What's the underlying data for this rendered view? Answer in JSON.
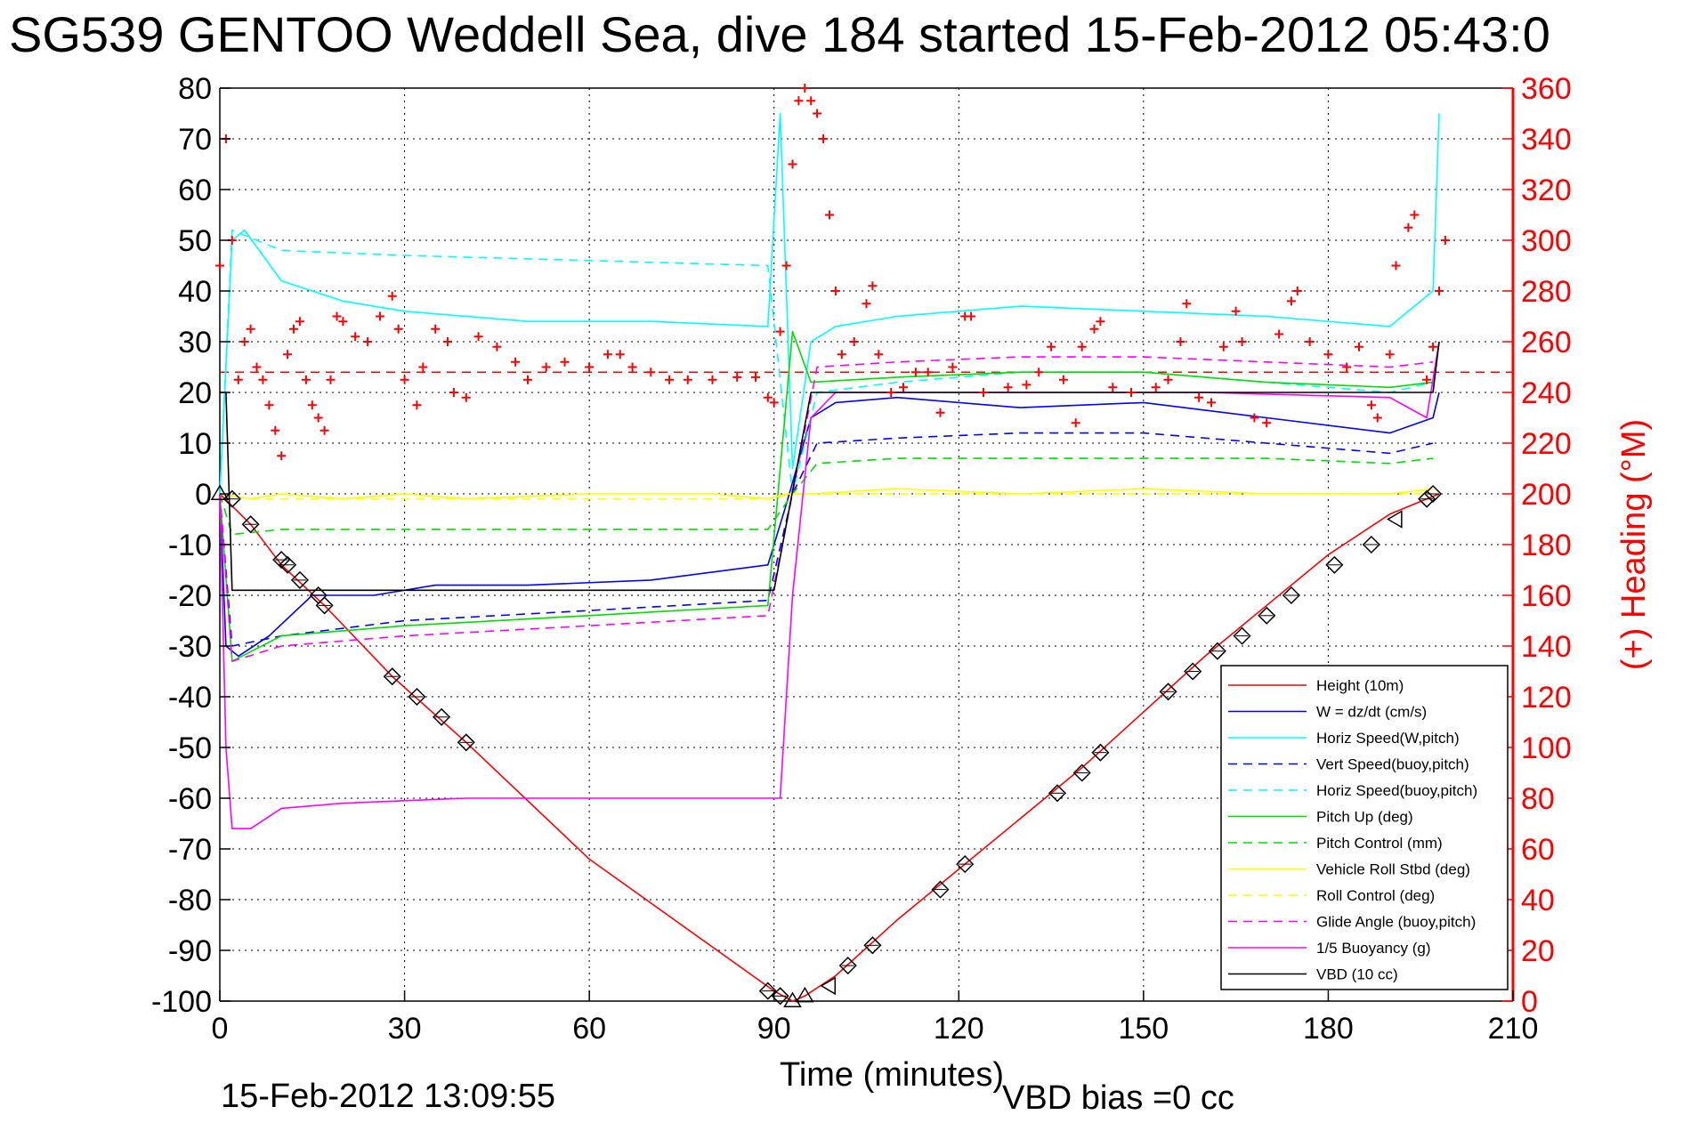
{
  "title": "SG539 GENTOO Weddell Sea, dive 184 started 15-Feb-2012 05:43:0",
  "footer": {
    "timestamp": "15-Feb-2012 13:09:55",
    "vbd_bias": "VBD bias =0 cc"
  },
  "chart_data": {
    "type": "line",
    "xlabel": "Time (minutes)",
    "ylabel": "",
    "y2label": "(+) Heading (°M)",
    "xlim": [
      0,
      210
    ],
    "ylim": [
      -100,
      80
    ],
    "y2lim": [
      0,
      360
    ],
    "x_ticks": [
      "0",
      "30",
      "60",
      "90",
      "120",
      "150",
      "180",
      "210"
    ],
    "y_ticks": [
      "80",
      "70",
      "60",
      "50",
      "40",
      "30",
      "20",
      "10",
      "0",
      "-10",
      "-20",
      "-30",
      "-40",
      "-50",
      "-60",
      "-70",
      "-80",
      "-90",
      "-100"
    ],
    "y2_ticks": [
      "360",
      "340",
      "320",
      "300",
      "280",
      "260",
      "240",
      "220",
      "200",
      "180",
      "160",
      "140",
      "120",
      "100",
      "80",
      "60",
      "40",
      "20",
      "0"
    ],
    "grid": true,
    "legend_position": "bottom-right",
    "series": [
      {
        "name": "Height (10m)",
        "color": "#ff0000",
        "style": "solid",
        "x": [
          0,
          5,
          10,
          17,
          28,
          40,
          60,
          90,
          93,
          95,
          100,
          110,
          120,
          140,
          160,
          180,
          190,
          198
        ],
        "y": [
          0,
          -6,
          -14,
          -22,
          -36,
          -49,
          -72,
          -98,
          -100,
          -99,
          -95,
          -84,
          -74,
          -54,
          -32,
          -12,
          -4,
          0
        ]
      },
      {
        "name": "W = dz/dt (cm/s)",
        "color": "#0000ff",
        "style": "solid",
        "x": [
          0,
          1,
          3,
          8,
          15,
          25,
          35,
          50,
          70,
          89,
          92,
          96,
          100,
          110,
          130,
          150,
          170,
          190,
          197,
          198
        ],
        "y": [
          0,
          -30,
          -32,
          -28,
          -20,
          -20,
          -18,
          -18,
          -17,
          -14,
          -2,
          15,
          18,
          19,
          17,
          18,
          15,
          12,
          15,
          20
        ]
      },
      {
        "name": "Horiz Speed(W,pitch)",
        "color": "#00ffff",
        "style": "solid",
        "x": [
          0,
          2,
          4,
          10,
          20,
          30,
          50,
          70,
          89,
          91,
          93,
          96,
          100,
          110,
          130,
          150,
          170,
          190,
          197,
          198
        ],
        "y": [
          0,
          50,
          52,
          42,
          38,
          36,
          34,
          34,
          33,
          75,
          5,
          30,
          33,
          35,
          37,
          36,
          35,
          33,
          40,
          75
        ]
      },
      {
        "name": "Vert Speed(buoy,pitch)",
        "color": "#0000ff",
        "style": "dashed",
        "x": [
          0,
          2,
          10,
          30,
          60,
          89,
          93,
          97,
          110,
          130,
          150,
          170,
          190,
          197
        ],
        "y": [
          0,
          -30,
          -28,
          -25,
          -23,
          -21,
          0,
          10,
          11,
          12,
          12,
          10,
          8,
          10
        ]
      },
      {
        "name": "Horiz Speed(buoy,pitch)",
        "color": "#00ffff",
        "style": "dashed",
        "x": [
          0,
          2,
          10,
          30,
          60,
          89,
          93,
          97,
          110,
          130,
          150,
          170,
          190,
          197
        ],
        "y": [
          0,
          52,
          48,
          47,
          46,
          45,
          0,
          20,
          22,
          24,
          24,
          22,
          20,
          22
        ]
      },
      {
        "name": "Pitch Up (deg)",
        "color": "#00dd00",
        "style": "solid",
        "x": [
          0,
          2,
          10,
          30,
          60,
          89,
          93,
          96,
          110,
          130,
          150,
          170,
          190,
          197
        ],
        "y": [
          0,
          -33,
          -28,
          -26,
          -24,
          -22,
          32,
          22,
          23,
          24,
          24,
          22,
          21,
          22
        ]
      },
      {
        "name": "Pitch Control (mm)",
        "color": "#00dd00",
        "style": "dashed",
        "x": [
          0,
          2,
          10,
          30,
          60,
          89,
          93,
          97,
          110,
          130,
          150,
          170,
          190,
          197
        ],
        "y": [
          0,
          -8,
          -7,
          -7,
          -7,
          -7,
          0,
          6,
          7,
          7,
          7,
          7,
          6,
          7
        ]
      },
      {
        "name": "Vehicle Roll Stbd (deg)",
        "color": "#ffff00",
        "style": "solid",
        "x": [
          0,
          5,
          10,
          20,
          30,
          40,
          60,
          80,
          89,
          92,
          96,
          110,
          130,
          150,
          170,
          190,
          197
        ],
        "y": [
          0,
          -1,
          0,
          -1,
          0,
          -1,
          0,
          0,
          -1,
          0,
          0,
          1,
          0,
          1,
          0,
          0,
          1
        ]
      },
      {
        "name": "Roll Control (deg)",
        "color": "#ffff00",
        "style": "dashed",
        "x": [
          0,
          5,
          10,
          30,
          60,
          89,
          93,
          97,
          110,
          130,
          150,
          170,
          190,
          197
        ],
        "y": [
          0,
          -1,
          -1,
          -1,
          -1,
          -1,
          0,
          0,
          0,
          0,
          0,
          0,
          0,
          0
        ]
      },
      {
        "name": "Glide Angle (buoy,pitch)",
        "color": "#ff00ff",
        "style": "dashed",
        "x": [
          0,
          2,
          10,
          30,
          60,
          89,
          93,
          97,
          110,
          130,
          150,
          170,
          190,
          197
        ],
        "y": [
          0,
          -33,
          -30,
          -28,
          -26,
          -24,
          0,
          25,
          26,
          27,
          27,
          26,
          25,
          26
        ]
      },
      {
        "name": "1/5 Buoyancy (g)",
        "color": "#ff00ff",
        "style": "solid",
        "x": [
          0,
          1,
          2,
          5,
          10,
          20,
          40,
          60,
          89,
          91,
          93,
          96,
          100,
          130,
          160,
          190,
          196,
          198
        ],
        "y": [
          0,
          -50,
          -66,
          -66,
          -62,
          -61,
          -60,
          -60,
          -60,
          -60,
          -20,
          15,
          20,
          20,
          20,
          19,
          15,
          30
        ]
      },
      {
        "name": "VBD (10 cc)",
        "color": "#000000",
        "style": "solid",
        "x": [
          0,
          1,
          2,
          50,
          89,
          90,
          96,
          100,
          150,
          190,
          197,
          198
        ],
        "y": [
          20,
          20,
          -19,
          -19,
          -19,
          -19,
          20,
          20,
          20,
          20,
          20,
          30
        ]
      }
    ],
    "heading_reference_deg": 248,
    "heading_reference_color": "#ff0000",
    "heading_points": [
      {
        "x": 0,
        "y": 290
      },
      {
        "x": 1,
        "y": 340
      },
      {
        "x": 2,
        "y": 300
      },
      {
        "x": 3,
        "y": 245
      },
      {
        "x": 4,
        "y": 260
      },
      {
        "x": 5,
        "y": 265
      },
      {
        "x": 6,
        "y": 250
      },
      {
        "x": 7,
        "y": 245
      },
      {
        "x": 8,
        "y": 235
      },
      {
        "x": 9,
        "y": 225
      },
      {
        "x": 10,
        "y": 215
      },
      {
        "x": 11,
        "y": 255
      },
      {
        "x": 12,
        "y": 265
      },
      {
        "x": 13,
        "y": 268
      },
      {
        "x": 14,
        "y": 245
      },
      {
        "x": 15,
        "y": 235
      },
      {
        "x": 16,
        "y": 230
      },
      {
        "x": 17,
        "y": 225
      },
      {
        "x": 18,
        "y": 245
      },
      {
        "x": 19,
        "y": 270
      },
      {
        "x": 20,
        "y": 268
      },
      {
        "x": 22,
        "y": 262
      },
      {
        "x": 24,
        "y": 260
      },
      {
        "x": 26,
        "y": 270
      },
      {
        "x": 28,
        "y": 278
      },
      {
        "x": 29,
        "y": 265
      },
      {
        "x": 30,
        "y": 245
      },
      {
        "x": 32,
        "y": 235
      },
      {
        "x": 33,
        "y": 250
      },
      {
        "x": 35,
        "y": 265
      },
      {
        "x": 37,
        "y": 260
      },
      {
        "x": 38,
        "y": 240
      },
      {
        "x": 40,
        "y": 238
      },
      {
        "x": 42,
        "y": 262
      },
      {
        "x": 45,
        "y": 258
      },
      {
        "x": 48,
        "y": 252
      },
      {
        "x": 50,
        "y": 245
      },
      {
        "x": 53,
        "y": 250
      },
      {
        "x": 56,
        "y": 252
      },
      {
        "x": 60,
        "y": 250
      },
      {
        "x": 63,
        "y": 255
      },
      {
        "x": 65,
        "y": 255
      },
      {
        "x": 67,
        "y": 250
      },
      {
        "x": 70,
        "y": 248
      },
      {
        "x": 73,
        "y": 245
      },
      {
        "x": 76,
        "y": 245
      },
      {
        "x": 80,
        "y": 245
      },
      {
        "x": 84,
        "y": 246
      },
      {
        "x": 87,
        "y": 246
      },
      {
        "x": 89,
        "y": 238
      },
      {
        "x": 90,
        "y": 236
      },
      {
        "x": 91,
        "y": 264
      },
      {
        "x": 92,
        "y": 290
      },
      {
        "x": 93,
        "y": 330
      },
      {
        "x": 94,
        "y": 355
      },
      {
        "x": 95,
        "y": 360
      },
      {
        "x": 96,
        "y": 355
      },
      {
        "x": 97,
        "y": 350
      },
      {
        "x": 98,
        "y": 340
      },
      {
        "x": 99,
        "y": 310
      },
      {
        "x": 100,
        "y": 280
      },
      {
        "x": 101,
        "y": 255
      },
      {
        "x": 103,
        "y": 260
      },
      {
        "x": 105,
        "y": 275
      },
      {
        "x": 106,
        "y": 282
      },
      {
        "x": 107,
        "y": 255
      },
      {
        "x": 109,
        "y": 240
      },
      {
        "x": 111,
        "y": 242
      },
      {
        "x": 113,
        "y": 248
      },
      {
        "x": 115,
        "y": 248
      },
      {
        "x": 117,
        "y": 232
      },
      {
        "x": 119,
        "y": 250
      },
      {
        "x": 121,
        "y": 270
      },
      {
        "x": 122,
        "y": 270
      },
      {
        "x": 124,
        "y": 240
      },
      {
        "x": 128,
        "y": 242
      },
      {
        "x": 131,
        "y": 243
      },
      {
        "x": 133,
        "y": 248
      },
      {
        "x": 135,
        "y": 258
      },
      {
        "x": 137,
        "y": 245
      },
      {
        "x": 139,
        "y": 228
      },
      {
        "x": 140,
        "y": 258
      },
      {
        "x": 142,
        "y": 265
      },
      {
        "x": 143,
        "y": 268
      },
      {
        "x": 145,
        "y": 242
      },
      {
        "x": 148,
        "y": 240
      },
      {
        "x": 152,
        "y": 242
      },
      {
        "x": 154,
        "y": 245
      },
      {
        "x": 156,
        "y": 260
      },
      {
        "x": 157,
        "y": 275
      },
      {
        "x": 159,
        "y": 238
      },
      {
        "x": 161,
        "y": 236
      },
      {
        "x": 163,
        "y": 258
      },
      {
        "x": 165,
        "y": 272
      },
      {
        "x": 166,
        "y": 260
      },
      {
        "x": 168,
        "y": 230
      },
      {
        "x": 170,
        "y": 228
      },
      {
        "x": 172,
        "y": 263
      },
      {
        "x": 174,
        "y": 276
      },
      {
        "x": 175,
        "y": 280
      },
      {
        "x": 177,
        "y": 260
      },
      {
        "x": 180,
        "y": 255
      },
      {
        "x": 183,
        "y": 250
      },
      {
        "x": 185,
        "y": 258
      },
      {
        "x": 187,
        "y": 235
      },
      {
        "x": 188,
        "y": 230
      },
      {
        "x": 190,
        "y": 255
      },
      {
        "x": 191,
        "y": 290
      },
      {
        "x": 193,
        "y": 305
      },
      {
        "x": 194,
        "y": 310
      },
      {
        "x": 196,
        "y": 245
      },
      {
        "x": 197,
        "y": 258
      },
      {
        "x": 198,
        "y": 280
      },
      {
        "x": 199,
        "y": 300
      }
    ],
    "depth_markers": [
      {
        "x": 0,
        "y": 0,
        "shape": "triangle-up"
      },
      {
        "x": 2,
        "y": -1,
        "shape": "diamond"
      },
      {
        "x": 5,
        "y": -6,
        "shape": "diamond"
      },
      {
        "x": 10,
        "y": -13,
        "shape": "diamond"
      },
      {
        "x": 11,
        "y": -14,
        "shape": "diamond"
      },
      {
        "x": 13,
        "y": -17,
        "shape": "diamond"
      },
      {
        "x": 16,
        "y": -20,
        "shape": "diamond"
      },
      {
        "x": 17,
        "y": -22,
        "shape": "diamond"
      },
      {
        "x": 28,
        "y": -36,
        "shape": "diamond"
      },
      {
        "x": 32,
        "y": -40,
        "shape": "diamond"
      },
      {
        "x": 36,
        "y": -44,
        "shape": "diamond"
      },
      {
        "x": 40,
        "y": -49,
        "shape": "diamond"
      },
      {
        "x": 89,
        "y": -98,
        "shape": "diamond"
      },
      {
        "x": 91,
        "y": -99,
        "shape": "diamond"
      },
      {
        "x": 93,
        "y": -100,
        "shape": "triangle-up"
      },
      {
        "x": 95,
        "y": -99,
        "shape": "triangle-up"
      },
      {
        "x": 99,
        "y": -97,
        "shape": "triangle-left"
      },
      {
        "x": 102,
        "y": -93,
        "shape": "diamond"
      },
      {
        "x": 106,
        "y": -89,
        "shape": "diamond"
      },
      {
        "x": 117,
        "y": -78,
        "shape": "diamond"
      },
      {
        "x": 121,
        "y": -73,
        "shape": "diamond"
      },
      {
        "x": 136,
        "y": -59,
        "shape": "diamond"
      },
      {
        "x": 140,
        "y": -55,
        "shape": "diamond"
      },
      {
        "x": 143,
        "y": -51,
        "shape": "diamond"
      },
      {
        "x": 154,
        "y": -39,
        "shape": "diamond"
      },
      {
        "x": 158,
        "y": -35,
        "shape": "diamond"
      },
      {
        "x": 162,
        "y": -31,
        "shape": "diamond"
      },
      {
        "x": 166,
        "y": -28,
        "shape": "diamond"
      },
      {
        "x": 170,
        "y": -24,
        "shape": "diamond"
      },
      {
        "x": 174,
        "y": -20,
        "shape": "diamond"
      },
      {
        "x": 181,
        "y": -14,
        "shape": "diamond"
      },
      {
        "x": 187,
        "y": -10,
        "shape": "diamond"
      },
      {
        "x": 191,
        "y": -5,
        "shape": "triangle-left"
      },
      {
        "x": 196,
        "y": -1,
        "shape": "diamond"
      },
      {
        "x": 197,
        "y": 0,
        "shape": "diamond"
      }
    ]
  }
}
